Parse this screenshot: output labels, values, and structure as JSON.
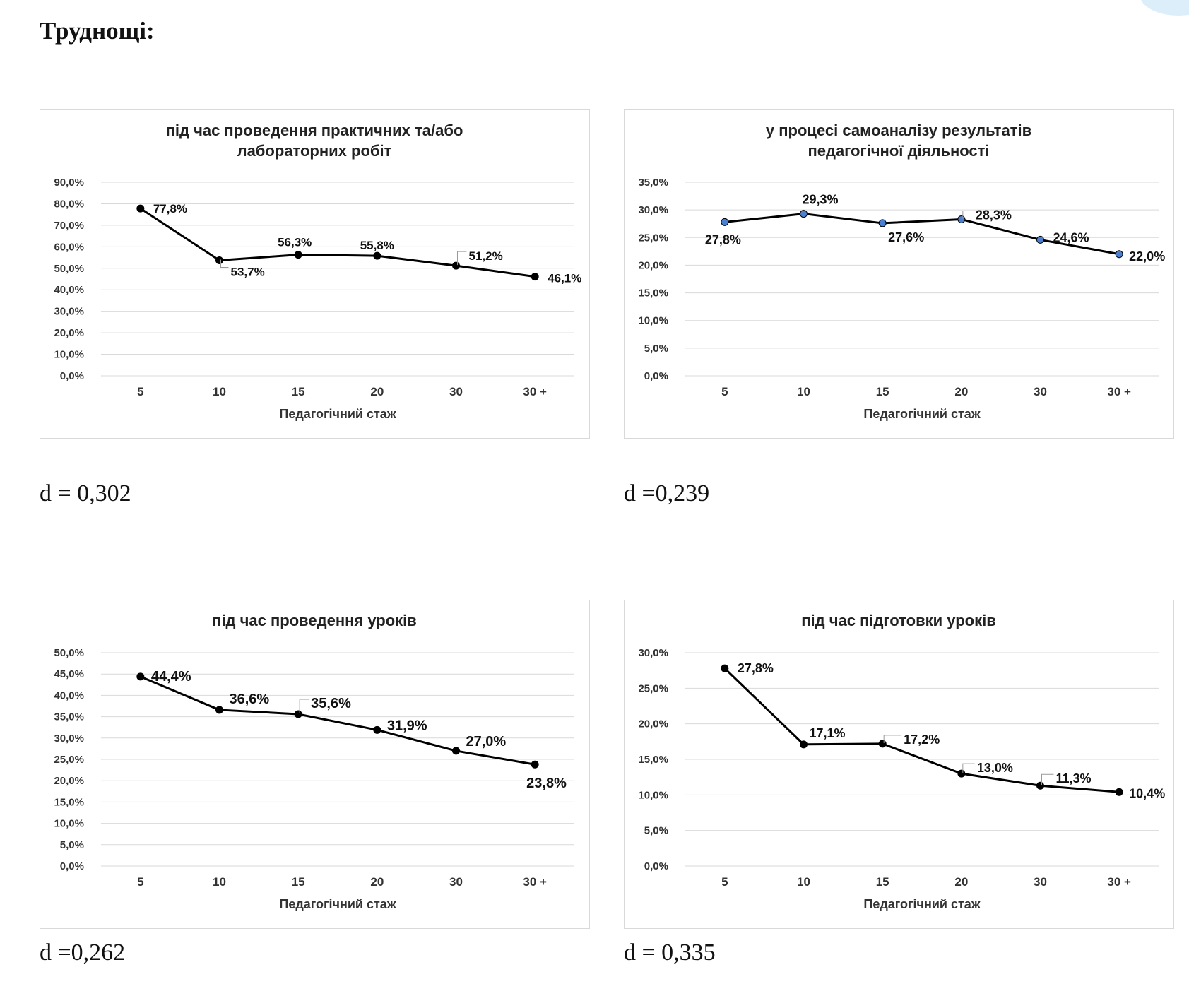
{
  "heading": "Труднощі:",
  "charts": [
    {
      "d_label": "d = 0,302",
      "chart_data": {
        "type": "line",
        "title": [
          "під час проведення практичних та/або",
          "лабораторних робіт"
        ],
        "xlabel": "Педагогічний стаж",
        "ylabel": "",
        "categories": [
          "5",
          "10",
          "15",
          "20",
          "30",
          "30 +"
        ],
        "values": [
          77.8,
          53.7,
          56.3,
          55.8,
          51.2,
          46.1
        ],
        "data_labels": [
          "77,8%",
          "53,7%",
          "56,3%",
          "55,8%",
          "51,2%",
          "46,1%"
        ],
        "ylim": [
          0,
          90
        ],
        "ystep": 10,
        "ytick_labels": [
          "0,0%",
          "10,0%",
          "20,0%",
          "30,0%",
          "40,0%",
          "50,0%",
          "60,0%",
          "70,0%",
          "80,0%",
          "90,0%"
        ],
        "grid": true,
        "legend": "none",
        "line_color": "#000000",
        "marker_color": "#000000"
      }
    },
    {
      "d_label": "d =0,239",
      "chart_data": {
        "type": "line",
        "title": [
          "у процесі самоаналізу результатів",
          "педагогічної діяльності"
        ],
        "xlabel": "Педагогічний стаж",
        "ylabel": "",
        "categories": [
          "5",
          "10",
          "15",
          "20",
          "30",
          "30 +"
        ],
        "values": [
          27.8,
          29.3,
          27.6,
          28.3,
          24.6,
          22.0
        ],
        "data_labels": [
          "27,8%",
          "29,3%",
          "27,6%",
          "28,3%",
          "24,6%",
          "22,0%"
        ],
        "ylim": [
          0,
          35
        ],
        "ystep": 5,
        "ytick_labels": [
          "0,0%",
          "5,0%",
          "10,0%",
          "15,0%",
          "20,0%",
          "25,0%",
          "30,0%",
          "35,0%"
        ],
        "grid": true,
        "legend": "none",
        "line_color": "#000000",
        "marker_color": "#4a7fd1"
      }
    },
    {
      "d_label": "d =0,262",
      "chart_data": {
        "type": "line",
        "title": [
          "під час проведення уроків"
        ],
        "xlabel": "Педагогічний стаж",
        "ylabel": "",
        "categories": [
          "5",
          "10",
          "15",
          "20",
          "30",
          "30 +"
        ],
        "values": [
          44.4,
          36.6,
          35.6,
          31.9,
          27.0,
          23.8
        ],
        "data_labels": [
          "44,4%",
          "36,6%",
          "35,6%",
          "31,9%",
          "27,0%",
          "23,8%"
        ],
        "ylim": [
          0,
          50
        ],
        "ystep": 5,
        "ytick_labels": [
          "0,0%",
          "5,0%",
          "10,0%",
          "15,0%",
          "20,0%",
          "25,0%",
          "30,0%",
          "35,0%",
          "40,0%",
          "45,0%",
          "50,0%"
        ],
        "grid": true,
        "legend": "none",
        "line_color": "#000000",
        "marker_color": "#000000"
      }
    },
    {
      "d_label": "d = 0,335",
      "chart_data": {
        "type": "line",
        "title": [
          "під час підготовки уроків"
        ],
        "xlabel": "Педагогічний стаж",
        "ylabel": "",
        "categories": [
          "5",
          "10",
          "15",
          "20",
          "30",
          "30 +"
        ],
        "values": [
          27.8,
          17.1,
          17.2,
          13.0,
          11.3,
          10.4
        ],
        "data_labels": [
          "27,8%",
          "17,1%",
          "17,2%",
          "13,0%",
          "11,3%",
          "10,4%"
        ],
        "ylim": [
          0,
          30
        ],
        "ystep": 5,
        "ytick_labels": [
          "0,0%",
          "5,0%",
          "10,0%",
          "15,0%",
          "20,0%",
          "25,0%",
          "30,0%"
        ],
        "grid": true,
        "legend": "none",
        "line_color": "#000000",
        "marker_color": "#000000"
      }
    }
  ]
}
